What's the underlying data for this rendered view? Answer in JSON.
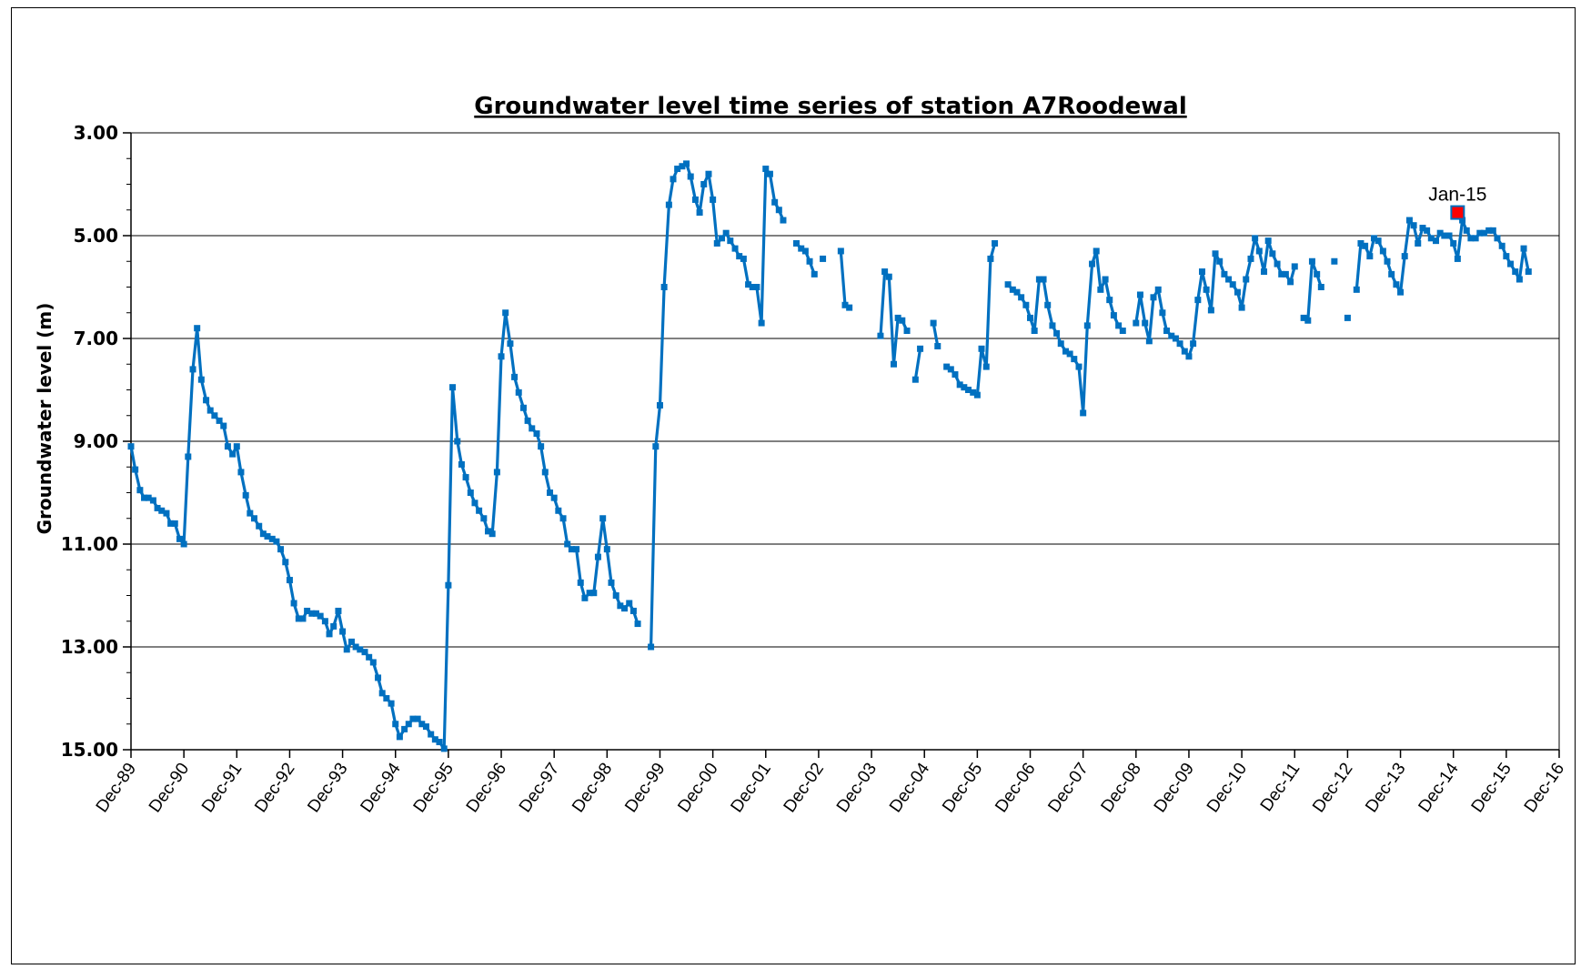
{
  "chart_data": {
    "type": "line",
    "title": "Groundwater level time series of station  A7Roodewal",
    "ylabel": "Groundwater level (m)",
    "xlabel": "",
    "y_inverted": true,
    "ylim": [
      3.0,
      15.0
    ],
    "yticks": [
      "3.00",
      "5.00",
      "7.00",
      "9.00",
      "11.00",
      "13.00",
      "15.00"
    ],
    "xticks": [
      "Dec-89",
      "Dec-90",
      "Dec-91",
      "Dec-92",
      "Dec-93",
      "Dec-94",
      "Dec-95",
      "Dec-96",
      "Dec-97",
      "Dec-98",
      "Dec-99",
      "Dec-00",
      "Dec-01",
      "Dec-02",
      "Dec-03",
      "Dec-04",
      "Dec-05",
      "Dec-06",
      "Dec-07",
      "Dec-08",
      "Dec-09",
      "Dec-10",
      "Dec-11",
      "Dec-12",
      "Dec-13",
      "Dec-14",
      "Dec-15",
      "Dec-16"
    ],
    "grid": "horizontal",
    "line_color": "#0070C0",
    "highlight_color": "#FF0000",
    "annotation": {
      "label": "Jan-15",
      "x": 2015.08,
      "y": 4.55
    },
    "series": [
      {
        "points": [
          [
            1990.0,
            9.1
          ],
          [
            1990.08,
            9.55
          ],
          [
            1990.17,
            9.95
          ],
          [
            1990.25,
            10.1
          ],
          [
            1990.33,
            10.1
          ],
          [
            1990.42,
            10.15
          ],
          [
            1990.5,
            10.3
          ],
          [
            1990.58,
            10.35
          ],
          [
            1990.67,
            10.4
          ],
          [
            1990.75,
            10.6
          ],
          [
            1990.83,
            10.6
          ],
          [
            1990.92,
            10.9
          ],
          [
            1991.0,
            11.0
          ],
          [
            1991.08,
            9.3
          ],
          [
            1991.17,
            7.6
          ],
          [
            1991.25,
            6.8
          ],
          [
            1991.33,
            7.8
          ],
          [
            1991.42,
            8.2
          ],
          [
            1991.5,
            8.4
          ],
          [
            1991.58,
            8.5
          ],
          [
            1991.67,
            8.6
          ],
          [
            1991.75,
            8.7
          ],
          [
            1991.83,
            9.1
          ],
          [
            1991.92,
            9.25
          ],
          [
            1992.0,
            9.1
          ],
          [
            1992.08,
            9.6
          ],
          [
            1992.17,
            10.05
          ],
          [
            1992.25,
            10.4
          ],
          [
            1992.33,
            10.5
          ],
          [
            1992.42,
            10.65
          ],
          [
            1992.5,
            10.8
          ],
          [
            1992.58,
            10.85
          ],
          [
            1992.67,
            10.9
          ],
          [
            1992.75,
            10.95
          ],
          [
            1992.83,
            11.1
          ],
          [
            1992.92,
            11.35
          ],
          [
            1993.0,
            11.7
          ],
          [
            1993.08,
            12.15
          ],
          [
            1993.17,
            12.45
          ],
          [
            1993.25,
            12.45
          ],
          [
            1993.33,
            12.3
          ],
          [
            1993.42,
            12.35
          ],
          [
            1993.5,
            12.35
          ],
          [
            1993.58,
            12.4
          ],
          [
            1993.67,
            12.5
          ],
          [
            1993.75,
            12.75
          ],
          [
            1993.83,
            12.6
          ],
          [
            1993.92,
            12.3
          ],
          [
            1994.0,
            12.7
          ],
          [
            1994.08,
            13.05
          ],
          [
            1994.17,
            12.9
          ],
          [
            1994.25,
            13.0
          ],
          [
            1994.33,
            13.05
          ],
          [
            1994.42,
            13.1
          ],
          [
            1994.5,
            13.2
          ],
          [
            1994.58,
            13.3
          ],
          [
            1994.67,
            13.6
          ],
          [
            1994.75,
            13.9
          ],
          [
            1994.83,
            14.0
          ],
          [
            1994.92,
            14.1
          ],
          [
            1995.0,
            14.5
          ],
          [
            1995.08,
            14.75
          ],
          [
            1995.17,
            14.6
          ],
          [
            1995.25,
            14.5
          ],
          [
            1995.33,
            14.4
          ],
          [
            1995.42,
            14.4
          ],
          [
            1995.5,
            14.5
          ],
          [
            1995.58,
            14.55
          ],
          [
            1995.67,
            14.7
          ],
          [
            1995.75,
            14.8
          ],
          [
            1995.83,
            14.85
          ],
          [
            1995.92,
            14.98
          ],
          [
            1996.0,
            11.8
          ],
          [
            1996.08,
            7.95
          ],
          [
            1996.17,
            9.0
          ],
          [
            1996.25,
            9.45
          ],
          [
            1996.33,
            9.7
          ],
          [
            1996.42,
            10.0
          ],
          [
            1996.5,
            10.2
          ],
          [
            1996.58,
            10.35
          ],
          [
            1996.67,
            10.5
          ],
          [
            1996.75,
            10.75
          ],
          [
            1996.83,
            10.8
          ],
          [
            1996.92,
            9.6
          ],
          [
            1997.0,
            7.35
          ],
          [
            1997.08,
            6.5
          ],
          [
            1997.17,
            7.1
          ],
          [
            1997.25,
            7.75
          ],
          [
            1997.33,
            8.05
          ],
          [
            1997.42,
            8.35
          ],
          [
            1997.5,
            8.6
          ],
          [
            1997.58,
            8.75
          ],
          [
            1997.67,
            8.85
          ],
          [
            1997.75,
            9.1
          ],
          [
            1997.83,
            9.6
          ],
          [
            1997.92,
            10.0
          ],
          [
            1998.0,
            10.1
          ],
          [
            1998.08,
            10.35
          ],
          [
            1998.17,
            10.5
          ],
          [
            1998.25,
            11.0
          ],
          [
            1998.33,
            11.1
          ],
          [
            1998.42,
            11.1
          ],
          [
            1998.5,
            11.75
          ],
          [
            1998.58,
            12.05
          ],
          [
            1998.67,
            11.95
          ],
          [
            1998.75,
            11.95
          ],
          [
            1998.83,
            11.25
          ],
          [
            1998.92,
            10.5
          ],
          [
            1999.0,
            11.1
          ],
          [
            1999.08,
            11.75
          ],
          [
            1999.17,
            12.0
          ],
          [
            1999.25,
            12.2
          ],
          [
            1999.33,
            12.25
          ],
          [
            1999.42,
            12.15
          ],
          [
            1999.5,
            12.3
          ],
          [
            1999.58,
            12.55
          ],
          null,
          [
            1999.83,
            13.0
          ],
          [
            1999.92,
            9.1
          ],
          [
            2000.0,
            8.3
          ],
          [
            2000.08,
            6.0
          ],
          [
            2000.17,
            4.4
          ],
          [
            2000.25,
            3.9
          ],
          [
            2000.33,
            3.7
          ],
          [
            2000.42,
            3.65
          ],
          [
            2000.5,
            3.6
          ],
          [
            2000.58,
            3.85
          ],
          [
            2000.67,
            4.3
          ],
          [
            2000.75,
            4.55
          ],
          [
            2000.83,
            4.0
          ],
          [
            2000.92,
            3.8
          ],
          [
            2001.0,
            4.3
          ],
          [
            2001.08,
            5.15
          ],
          [
            2001.17,
            5.05
          ],
          [
            2001.25,
            4.95
          ],
          [
            2001.33,
            5.1
          ],
          [
            2001.42,
            5.25
          ],
          [
            2001.5,
            5.4
          ],
          [
            2001.58,
            5.45
          ],
          [
            2001.67,
            5.95
          ],
          [
            2001.75,
            6.0
          ],
          [
            2001.83,
            6.0
          ],
          [
            2001.92,
            6.7
          ],
          [
            2002.0,
            3.7
          ],
          [
            2002.08,
            3.8
          ],
          [
            2002.17,
            4.35
          ],
          [
            2002.25,
            4.5
          ],
          [
            2002.33,
            4.7
          ],
          null,
          [
            2002.58,
            5.15
          ],
          [
            2002.67,
            5.25
          ],
          [
            2002.75,
            5.3
          ],
          [
            2002.83,
            5.5
          ],
          [
            2002.92,
            5.75
          ],
          null,
          [
            2003.08,
            5.45
          ],
          null,
          [
            2003.42,
            5.3
          ],
          [
            2003.5,
            6.35
          ],
          [
            2003.58,
            6.4
          ],
          null,
          [
            2004.17,
            6.95
          ],
          [
            2004.25,
            5.7
          ],
          [
            2004.33,
            5.8
          ],
          [
            2004.42,
            7.5
          ],
          [
            2004.5,
            6.6
          ],
          [
            2004.58,
            6.65
          ],
          [
            2004.67,
            6.85
          ],
          null,
          [
            2004.83,
            7.8
          ],
          [
            2004.92,
            7.2
          ],
          null,
          [
            2005.17,
            6.7
          ],
          [
            2005.25,
            7.15
          ],
          null,
          [
            2005.42,
            7.55
          ],
          [
            2005.5,
            7.6
          ],
          [
            2005.58,
            7.7
          ],
          [
            2005.67,
            7.9
          ],
          [
            2005.75,
            7.95
          ],
          [
            2005.83,
            8.0
          ],
          [
            2005.92,
            8.05
          ],
          [
            2006.0,
            8.1
          ],
          [
            2006.08,
            7.2
          ],
          [
            2006.17,
            7.55
          ],
          [
            2006.25,
            5.45
          ],
          [
            2006.33,
            5.15
          ],
          null,
          [
            2006.58,
            5.95
          ],
          [
            2006.67,
            6.05
          ],
          [
            2006.75,
            6.1
          ],
          [
            2006.83,
            6.2
          ],
          [
            2006.92,
            6.35
          ],
          [
            2007.0,
            6.6
          ],
          [
            2007.08,
            6.85
          ],
          [
            2007.17,
            5.85
          ],
          [
            2007.25,
            5.85
          ],
          [
            2007.33,
            6.35
          ],
          [
            2007.42,
            6.75
          ],
          [
            2007.5,
            6.9
          ],
          [
            2007.58,
            7.1
          ],
          [
            2007.67,
            7.25
          ],
          [
            2007.75,
            7.3
          ],
          [
            2007.83,
            7.4
          ],
          [
            2007.92,
            7.55
          ],
          [
            2008.0,
            8.45
          ],
          [
            2008.08,
            6.75
          ],
          [
            2008.17,
            5.55
          ],
          [
            2008.25,
            5.3
          ],
          [
            2008.33,
            6.05
          ],
          [
            2008.42,
            5.85
          ],
          [
            2008.5,
            6.25
          ],
          [
            2008.58,
            6.55
          ],
          [
            2008.67,
            6.75
          ],
          [
            2008.75,
            6.85
          ],
          null,
          [
            2009.0,
            6.7
          ],
          [
            2009.08,
            6.15
          ],
          [
            2009.17,
            6.7
          ],
          [
            2009.25,
            7.05
          ],
          [
            2009.33,
            6.2
          ],
          [
            2009.42,
            6.05
          ],
          [
            2009.5,
            6.5
          ],
          [
            2009.58,
            6.85
          ],
          [
            2009.67,
            6.95
          ],
          [
            2009.75,
            7.0
          ],
          [
            2009.83,
            7.1
          ],
          [
            2009.92,
            7.25
          ],
          [
            2010.0,
            7.35
          ],
          [
            2010.08,
            7.1
          ],
          [
            2010.17,
            6.25
          ],
          [
            2010.25,
            5.7
          ],
          [
            2010.33,
            6.05
          ],
          [
            2010.42,
            6.45
          ],
          [
            2010.5,
            5.35
          ],
          [
            2010.58,
            5.5
          ],
          [
            2010.67,
            5.75
          ],
          [
            2010.75,
            5.85
          ],
          [
            2010.83,
            5.95
          ],
          [
            2010.92,
            6.1
          ],
          [
            2011.0,
            6.4
          ],
          [
            2011.08,
            5.85
          ],
          [
            2011.17,
            5.45
          ],
          [
            2011.25,
            5.05
          ],
          [
            2011.33,
            5.3
          ],
          [
            2011.42,
            5.7
          ],
          [
            2011.5,
            5.1
          ],
          [
            2011.58,
            5.35
          ],
          [
            2011.67,
            5.55
          ],
          [
            2011.75,
            5.75
          ],
          [
            2011.83,
            5.75
          ],
          [
            2011.92,
            5.9
          ],
          [
            2012.0,
            5.6
          ],
          null,
          [
            2012.17,
            6.6
          ],
          [
            2012.25,
            6.65
          ],
          [
            2012.33,
            5.5
          ],
          [
            2012.42,
            5.75
          ],
          [
            2012.5,
            6.0
          ],
          null,
          [
            2012.75,
            5.5
          ],
          null,
          [
            2013.0,
            6.6
          ],
          null,
          [
            2013.17,
            6.05
          ],
          [
            2013.25,
            5.15
          ],
          [
            2013.33,
            5.2
          ],
          [
            2013.42,
            5.4
          ],
          [
            2013.5,
            5.05
          ],
          [
            2013.58,
            5.1
          ],
          [
            2013.67,
            5.3
          ],
          [
            2013.75,
            5.5
          ],
          [
            2013.83,
            5.75
          ],
          [
            2013.92,
            5.95
          ],
          [
            2014.0,
            6.1
          ],
          [
            2014.08,
            5.4
          ],
          [
            2014.17,
            4.7
          ],
          [
            2014.25,
            4.8
          ],
          [
            2014.33,
            5.15
          ],
          [
            2014.42,
            4.85
          ],
          [
            2014.5,
            4.9
          ],
          [
            2014.58,
            5.05
          ],
          [
            2014.67,
            5.1
          ],
          [
            2014.75,
            4.95
          ],
          [
            2014.83,
            5.0
          ],
          [
            2014.92,
            5.0
          ],
          [
            2015.0,
            5.15
          ],
          [
            2015.08,
            5.45
          ],
          [
            2015.17,
            4.7
          ],
          [
            2015.25,
            4.9
          ],
          [
            2015.33,
            5.05
          ],
          [
            2015.42,
            5.05
          ],
          [
            2015.5,
            4.95
          ],
          [
            2015.58,
            4.95
          ],
          [
            2015.67,
            4.9
          ],
          [
            2015.75,
            4.9
          ],
          [
            2015.83,
            5.05
          ],
          [
            2015.92,
            5.2
          ],
          [
            2016.0,
            5.4
          ],
          [
            2016.08,
            5.55
          ],
          [
            2016.17,
            5.7
          ],
          [
            2016.25,
            5.85
          ],
          [
            2016.33,
            5.25
          ],
          [
            2016.42,
            5.7
          ]
        ]
      }
    ]
  }
}
